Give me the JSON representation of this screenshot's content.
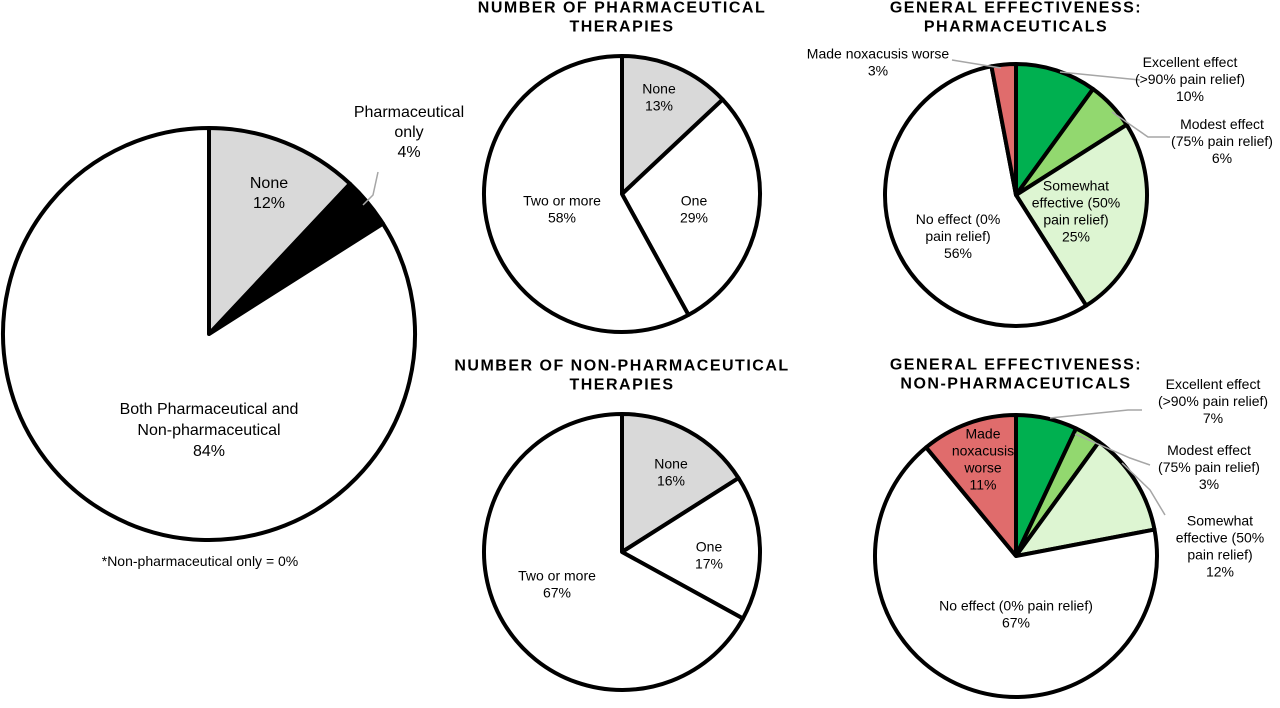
{
  "chart_data": [
    {
      "type": "pie",
      "title": "",
      "note": "*Non-pharmaceutical only = 0%",
      "slices": [
        {
          "label": [
            "None",
            "12%"
          ],
          "value": 12,
          "color": "#d9d9d9"
        },
        {
          "label": [
            "Pharmaceutical",
            "only",
            "4%"
          ],
          "value": 4,
          "color": "#000000"
        },
        {
          "label": [
            "Both Pharmaceutical and",
            "Non-pharmaceutical",
            "84%"
          ],
          "value": 84,
          "color": "#ffffff"
        }
      ]
    },
    {
      "type": "pie",
      "title": [
        "NUMBER OF PHARMACEUTICAL",
        "THERAPIES"
      ],
      "slices": [
        {
          "label": [
            "None",
            "13%"
          ],
          "value": 13,
          "color": "#d9d9d9"
        },
        {
          "label": [
            "One",
            "29%"
          ],
          "value": 29,
          "color": "#ffffff"
        },
        {
          "label": [
            "Two or more",
            "58%"
          ],
          "value": 58,
          "color": "#ffffff"
        }
      ]
    },
    {
      "type": "pie",
      "title": [
        "NUMBER OF NON-PHARMACEUTICAL",
        "THERAPIES"
      ],
      "slices": [
        {
          "label": [
            "None",
            "16%"
          ],
          "value": 16,
          "color": "#d9d9d9"
        },
        {
          "label": [
            "One",
            "17%"
          ],
          "value": 17,
          "color": "#ffffff"
        },
        {
          "label": [
            "Two or more",
            "67%"
          ],
          "value": 67,
          "color": "#ffffff"
        }
      ]
    },
    {
      "type": "pie",
      "title": [
        "GENERAL EFFECTIVENESS:",
        "PHARMACEUTICALS"
      ],
      "slices": [
        {
          "label": [
            "Excellent effect",
            "(>90% pain relief)",
            "10%"
          ],
          "value": 10,
          "color": "#00b050"
        },
        {
          "label": [
            "Modest effect",
            "(75% pain relief)",
            "6%"
          ],
          "value": 6,
          "color": "#92d86f"
        },
        {
          "label": [
            "Somewhat",
            "effective (50%",
            "pain relief)",
            "25%"
          ],
          "value": 25,
          "color": "#ddf5d2"
        },
        {
          "label": [
            "No effect (0%",
            "pain relief)",
            "56%"
          ],
          "value": 56,
          "color": "#ffffff"
        },
        {
          "label": [
            "Made noxacusis worse",
            "3%"
          ],
          "value": 3,
          "color": "#e06c6c"
        }
      ]
    },
    {
      "type": "pie",
      "title": [
        "GENERAL EFFECTIVENESS:",
        "NON-PHARMACEUTICALS"
      ],
      "slices": [
        {
          "label": [
            "Excellent effect",
            "(>90% pain relief)",
            "7%"
          ],
          "value": 7,
          "color": "#00b050"
        },
        {
          "label": [
            "Modest effect",
            "(75% pain relief)",
            "3%"
          ],
          "value": 3,
          "color": "#92d86f"
        },
        {
          "label": [
            "Somewhat",
            "effective (50%",
            "pain relief)",
            "12%"
          ],
          "value": 12,
          "color": "#ddf5d2"
        },
        {
          "label": [
            "No effect (0% pain relief)",
            "67%"
          ],
          "value": 67,
          "color": "#ffffff"
        },
        {
          "label": [
            "Made",
            "noxacusis",
            "worse",
            "11%"
          ],
          "value": 11,
          "color": "#e06c6c"
        }
      ]
    }
  ]
}
